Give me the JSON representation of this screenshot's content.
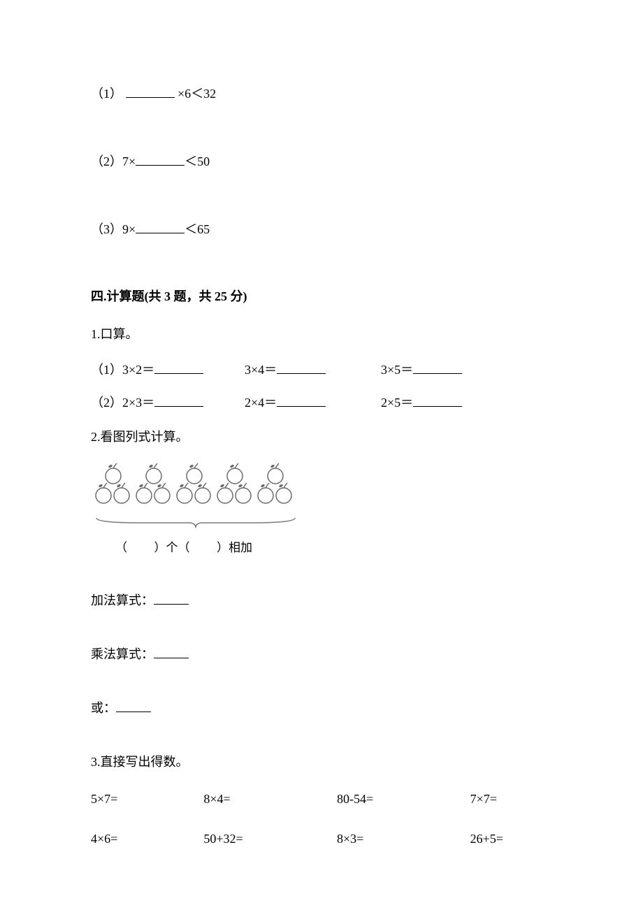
{
  "fill_blanks": {
    "q1": {
      "label": "（1）",
      "expr_pre": "",
      "expr_post": "×6＜32"
    },
    "q2": {
      "label": "（2）",
      "expr_pre": "7×",
      "expr_post": "＜50"
    },
    "q3": {
      "label": "（3）",
      "expr_pre": "9×",
      "expr_post": "＜65"
    }
  },
  "section4": {
    "header": "四.计算题(共 3 题，共 25 分)",
    "q1": {
      "title": "1.口算。",
      "row1_label": "（1）",
      "row2_label": "（2）",
      "row1": [
        "3×2＝",
        "3×4＝",
        "3×5＝"
      ],
      "row2": [
        "2×3＝",
        "2×4＝",
        "2×5＝"
      ]
    },
    "q2": {
      "title": "2.看图列式计算。",
      "caption_a": "（",
      "caption_b": "）个（",
      "caption_c": "）相加",
      "addition_label": "加法算式：",
      "multiplication_label": "乘法算式：",
      "or_label": "或：",
      "group_count": 5,
      "apples_per_group": 3,
      "apple_fill": "#ffffff",
      "apple_stroke": "#6b6b6b",
      "brace_stroke": "#7a7a7a"
    },
    "q3": {
      "title": "3.直接写出得数。",
      "row1": [
        "5×7=",
        "8×4=",
        "80-54=",
        "7×7="
      ],
      "row2": [
        "4×6=",
        "50+32=",
        "8×3=",
        "26+5="
      ]
    }
  },
  "colors": {
    "text": "#000000",
    "background": "#ffffff"
  },
  "fonts": {
    "body_size": 18,
    "family": "SimSun"
  }
}
